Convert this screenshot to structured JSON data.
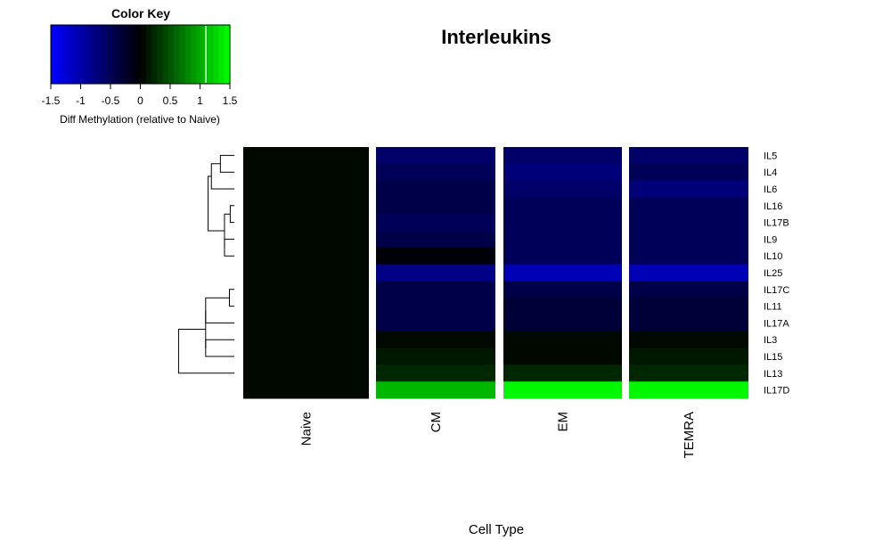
{
  "chart_data": {
    "type": "heatmap",
    "title": "Interleukins",
    "xlabel": "Cell Type",
    "ylabel": "",
    "columns": [
      "Naive",
      "CM",
      "EM",
      "TEMRA"
    ],
    "rows": [
      "IL5",
      "IL4",
      "IL6",
      "IL16",
      "IL17B",
      "IL9",
      "IL10",
      "IL25",
      "IL17C",
      "IL11",
      "IL17A",
      "IL3",
      "IL15",
      "IL13",
      "IL17D"
    ],
    "values": [
      [
        0,
        -0.65,
        -0.65,
        -0.65
      ],
      [
        0,
        -0.55,
        -0.75,
        -0.5
      ],
      [
        0,
        -0.45,
        -0.65,
        -0.75
      ],
      [
        0,
        -0.4,
        -0.5,
        -0.55
      ],
      [
        0,
        -0.5,
        -0.5,
        -0.55
      ],
      [
        0,
        -0.45,
        -0.5,
        -0.55
      ],
      [
        0,
        -0.05,
        -0.5,
        -0.5
      ],
      [
        0,
        -0.8,
        -1.1,
        -1.1
      ],
      [
        0,
        -0.4,
        -0.4,
        -0.4
      ],
      [
        0,
        -0.4,
        -0.35,
        -0.35
      ],
      [
        0,
        -0.45,
        -0.35,
        -0.3
      ],
      [
        0,
        0.05,
        0.05,
        0.05
      ],
      [
        0,
        0.1,
        0.05,
        0.1
      ],
      [
        0,
        0.25,
        0.25,
        0.25
      ],
      [
        0,
        1.1,
        1.5,
        1.5
      ]
    ],
    "color_scale": {
      "range": [
        -1.5,
        1.5
      ],
      "low_color": "#0000ff",
      "mid_color": "#000000",
      "high_color": "#00ff00"
    },
    "color_key": {
      "title": "Color Key",
      "label": "Diff Methylation (relative to Naive)",
      "ticks": [
        "-1.5",
        "-1",
        "-0.5",
        "0",
        "0.5",
        "1",
        "1.5"
      ],
      "marker_value": 1.1
    },
    "dendrogram": {
      "side": "left",
      "merges": [
        [
          "IL5",
          "IL4",
          0.17
        ],
        [
          "IL16",
          "IL17B",
          0.05
        ],
        [
          "IL9",
          "IL10",
          0.12
        ],
        [
          "IL16+IL17B",
          "IL9+IL10",
          0.12
        ],
        [
          "IL5+IL4",
          "IL6",
          0.28
        ],
        [
          "IL5+IL4+IL6",
          "IL16..IL10",
          0.32
        ],
        [
          "IL5..IL10",
          "IL25",
          0.68
        ],
        [
          "IL17C",
          "IL11",
          0.06
        ],
        [
          "IL17C+IL11",
          "IL17A",
          0.35
        ],
        [
          "IL3",
          "IL15",
          0.35
        ],
        [
          "IL17C+IL11+IL17A",
          "IL3+IL15",
          0.35
        ],
        [
          "IL17C..IL15",
          "IL13",
          0.68
        ],
        [
          "IL5..IL25",
          "IL17C..IL13",
          1.4
        ],
        [
          "IL5..IL13",
          "IL17D",
          2.75
        ]
      ]
    }
  }
}
